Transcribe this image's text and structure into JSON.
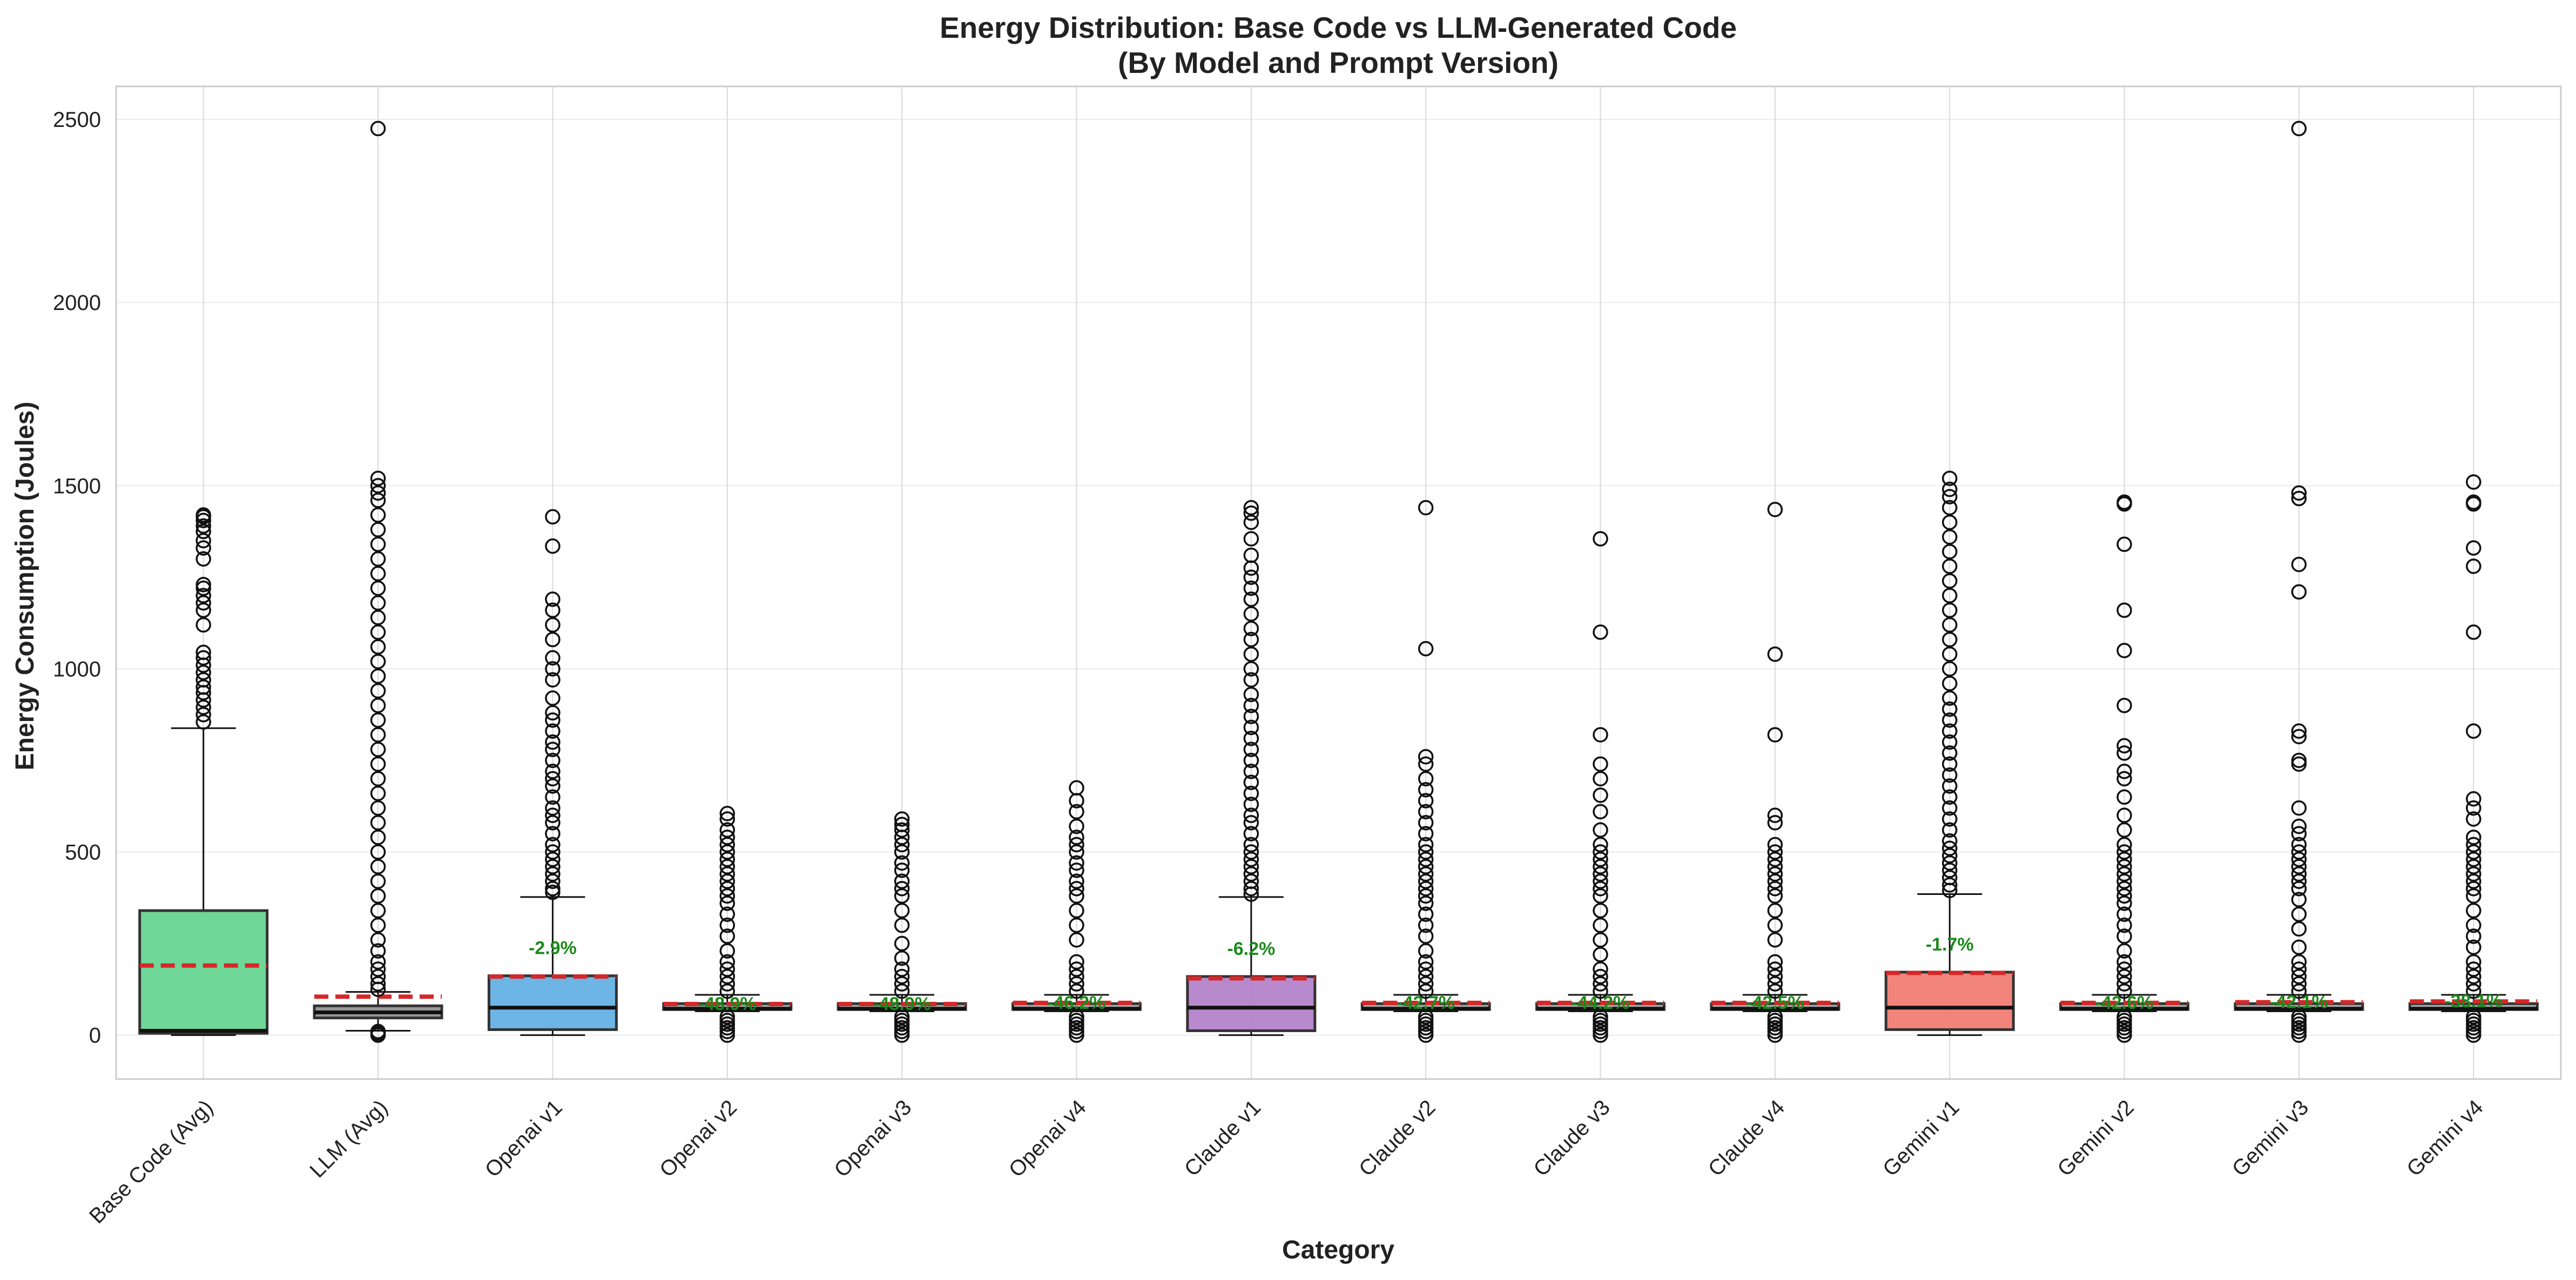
{
  "chart_data": {
    "type": "box",
    "title_line1": "Energy Distribution: Base Code vs LLM-Generated Code",
    "title_line2": "(By Model and Prompt Version)",
    "xlabel": "Category",
    "ylabel": "Energy Consumption (Joules)",
    "ylim": [
      -120,
      2590
    ],
    "yticks": [
      0,
      500,
      1000,
      1500,
      2000,
      2500
    ],
    "grid": true,
    "mean_line_color": "#d62728",
    "annotation_color": "#1a8a1a",
    "categories": [
      {
        "label": "Base Code (Avg)",
        "color": "#5fd38d",
        "q1": 5,
        "median": 12,
        "q3": 340,
        "mean": 190,
        "whisker_low": 0,
        "whisker_high": 838,
        "pct_change": "",
        "outliers": [
          855,
          875,
          895,
          915,
          935,
          950,
          970,
          990,
          1010,
          1030,
          1045,
          1120,
          1160,
          1180,
          1200,
          1220,
          1230,
          1300,
          1330,
          1350,
          1375,
          1390,
          1405,
          1415,
          1420
        ]
      },
      {
        "label": "LLM (Avg)",
        "color": "#8e8e8e",
        "q1": 47,
        "median": 62,
        "q3": 80,
        "mean": 105,
        "whisker_low": 12,
        "whisker_high": 118,
        "pct_change": "",
        "outliers": [
          0,
          5,
          10,
          125,
          140,
          160,
          180,
          200,
          230,
          260,
          300,
          340,
          380,
          420,
          460,
          500,
          540,
          580,
          620,
          660,
          700,
          740,
          780,
          820,
          860,
          900,
          940,
          980,
          1020,
          1060,
          1100,
          1140,
          1180,
          1220,
          1260,
          1300,
          1340,
          1380,
          1420,
          1460,
          1480,
          1500,
          1520,
          2475
        ]
      },
      {
        "label": "Openai v1",
        "color": "#5dade2",
        "q1": 15,
        "median": 75,
        "q3": 162,
        "mean": 160,
        "whisker_low": 0,
        "whisker_high": 377,
        "pct_change": "-2.9%",
        "outliers": [
          390,
          400,
          420,
          440,
          460,
          480,
          500,
          520,
          550,
          580,
          600,
          620,
          650,
          680,
          700,
          720,
          750,
          780,
          800,
          830,
          860,
          880,
          920,
          970,
          1000,
          1030,
          1080,
          1120,
          1160,
          1190,
          1335,
          1415
        ]
      },
      {
        "label": "Openai v2",
        "color": "#a0a0a0",
        "q1": 70,
        "median": 72,
        "q3": 86,
        "mean": 85,
        "whisker_low": 65,
        "whisker_high": 110,
        "pct_change": "-48.9%",
        "outliers": [
          0,
          10,
          20,
          30,
          40,
          50,
          120,
          140,
          160,
          180,
          200,
          230,
          270,
          300,
          330,
          360,
          380,
          400,
          420,
          440,
          460,
          480,
          500,
          520,
          540,
          560,
          590,
          605
        ]
      },
      {
        "label": "Openai v3",
        "color": "#a0a0a0",
        "q1": 70,
        "median": 72,
        "q3": 86,
        "mean": 85,
        "whisker_low": 65,
        "whisker_high": 110,
        "pct_change": "-48.9%",
        "outliers": [
          0,
          10,
          20,
          30,
          40,
          50,
          120,
          140,
          160,
          180,
          210,
          250,
          300,
          340,
          380,
          400,
          420,
          450,
          470,
          500,
          520,
          540,
          560,
          575,
          590
        ]
      },
      {
        "label": "Openai v4",
        "color": "#a0a0a0",
        "q1": 70,
        "median": 72,
        "q3": 86,
        "mean": 88,
        "whisker_low": 65,
        "whisker_high": 110,
        "pct_change": "-46.2%",
        "outliers": [
          0,
          10,
          20,
          30,
          40,
          50,
          120,
          140,
          160,
          180,
          200,
          260,
          300,
          340,
          380,
          400,
          420,
          450,
          470,
          500,
          520,
          540,
          570,
          610,
          640,
          675
        ]
      },
      {
        "label": "Claude v1",
        "color": "#b07cc6",
        "q1": 12,
        "median": 75,
        "q3": 160,
        "mean": 155,
        "whisker_low": 0,
        "whisker_high": 377,
        "pct_change": "-6.2%",
        "outliers": [
          385,
          400,
          420,
          440,
          460,
          480,
          500,
          520,
          550,
          580,
          600,
          630,
          660,
          690,
          720,
          750,
          780,
          810,
          840,
          870,
          900,
          930,
          970,
          1000,
          1040,
          1080,
          1110,
          1150,
          1190,
          1220,
          1250,
          1275,
          1310,
          1355,
          1400,
          1425,
          1440
        ]
      },
      {
        "label": "Claude v2",
        "color": "#a0a0a0",
        "q1": 70,
        "median": 72,
        "q3": 86,
        "mean": 88,
        "whisker_low": 65,
        "whisker_high": 110,
        "pct_change": "-42.7%",
        "outliers": [
          0,
          10,
          20,
          30,
          40,
          50,
          120,
          140,
          160,
          180,
          200,
          230,
          270,
          300,
          330,
          360,
          380,
          400,
          420,
          440,
          460,
          480,
          500,
          520,
          550,
          580,
          610,
          640,
          670,
          700,
          740,
          760,
          1055,
          1440
        ]
      },
      {
        "label": "Claude v3",
        "color": "#a0a0a0",
        "q1": 70,
        "median": 72,
        "q3": 86,
        "mean": 88,
        "whisker_low": 65,
        "whisker_high": 110,
        "pct_change": "-44.2%",
        "outliers": [
          0,
          10,
          20,
          30,
          40,
          50,
          120,
          140,
          160,
          180,
          220,
          260,
          300,
          340,
          380,
          400,
          420,
          440,
          460,
          480,
          500,
          520,
          560,
          610,
          655,
          700,
          740,
          820,
          1100,
          1355
        ]
      },
      {
        "label": "Claude v4",
        "color": "#a0a0a0",
        "q1": 70,
        "median": 72,
        "q3": 86,
        "mean": 88,
        "whisker_low": 65,
        "whisker_high": 110,
        "pct_change": "-42.5%",
        "outliers": [
          0,
          10,
          20,
          30,
          40,
          50,
          120,
          140,
          160,
          180,
          200,
          260,
          300,
          340,
          380,
          400,
          420,
          440,
          460,
          480,
          500,
          520,
          580,
          600,
          820,
          1040,
          1435
        ]
      },
      {
        "label": "Gemini v1",
        "color": "#f1776d",
        "q1": 15,
        "median": 75,
        "q3": 172,
        "mean": 170,
        "whisker_low": 0,
        "whisker_high": 385,
        "pct_change": "-1.7%",
        "outliers": [
          395,
          410,
          430,
          450,
          470,
          490,
          510,
          530,
          560,
          590,
          620,
          650,
          680,
          710,
          740,
          770,
          800,
          830,
          860,
          890,
          920,
          960,
          1000,
          1040,
          1080,
          1120,
          1160,
          1200,
          1240,
          1280,
          1320,
          1360,
          1400,
          1440,
          1470,
          1490,
          1520
        ]
      },
      {
        "label": "Gemini v2",
        "color": "#a0a0a0",
        "q1": 70,
        "median": 72,
        "q3": 86,
        "mean": 88,
        "whisker_low": 65,
        "whisker_high": 110,
        "pct_change": "-42.6%",
        "outliers": [
          0,
          10,
          20,
          30,
          40,
          50,
          120,
          140,
          160,
          180,
          200,
          230,
          270,
          300,
          330,
          360,
          380,
          400,
          420,
          440,
          460,
          480,
          500,
          520,
          560,
          600,
          650,
          700,
          720,
          770,
          790,
          900,
          1050,
          1160,
          1340,
          1450,
          1455
        ]
      },
      {
        "label": "Gemini v3",
        "color": "#a0a0a0",
        "q1": 70,
        "median": 72,
        "q3": 86,
        "mean": 90,
        "whisker_low": 65,
        "whisker_high": 110,
        "pct_change": "-42.1%",
        "outliers": [
          0,
          10,
          20,
          30,
          40,
          50,
          120,
          140,
          160,
          180,
          200,
          240,
          290,
          330,
          370,
          400,
          420,
          440,
          460,
          480,
          500,
          520,
          550,
          570,
          620,
          740,
          750,
          815,
          830,
          1210,
          1285,
          1465,
          1480,
          2475
        ]
      },
      {
        "label": "Gemini v4",
        "color": "#a0a0a0",
        "q1": 70,
        "median": 72,
        "q3": 86,
        "mean": 92,
        "whisker_low": 65,
        "whisker_high": 110,
        "pct_change": "-38.1%",
        "outliers": [
          0,
          10,
          20,
          30,
          40,
          50,
          120,
          140,
          160,
          180,
          200,
          240,
          270,
          300,
          340,
          380,
          400,
          420,
          440,
          460,
          480,
          500,
          520,
          540,
          590,
          620,
          645,
          830,
          1100,
          1280,
          1330,
          1450,
          1455,
          1510
        ]
      }
    ]
  }
}
